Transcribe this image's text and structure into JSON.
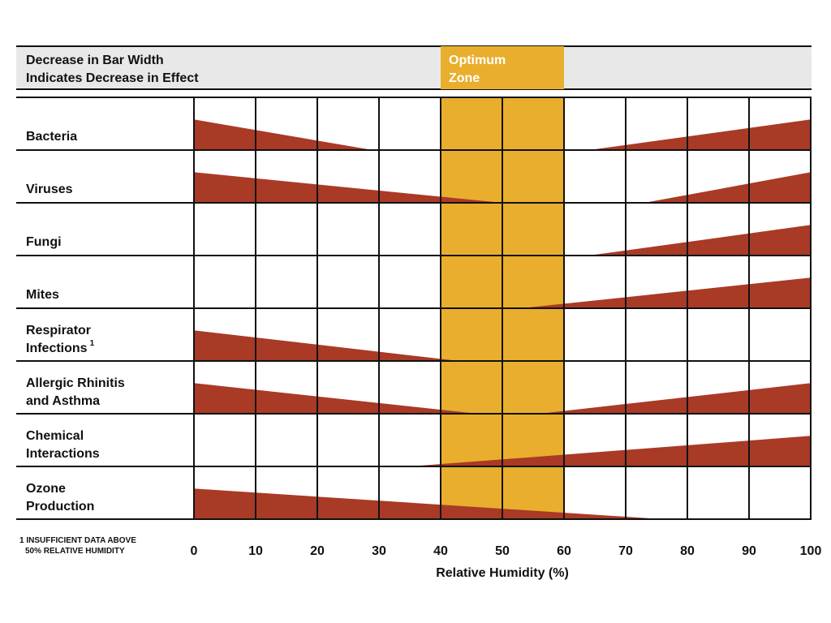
{
  "chart_data": {
    "type": "bar",
    "title": "",
    "legend_note": [
      "Decrease in Bar Width",
      "Indicates Decrease in Effect"
    ],
    "optimum_zone": {
      "label": [
        "Optimum",
        "Zone"
      ],
      "range": [
        40,
        60
      ]
    },
    "xlabel": "Relative Humidity (%)",
    "xlim": [
      0,
      100
    ],
    "xticks": [
      "0",
      "10",
      "20",
      "30",
      "40",
      "50",
      "60",
      "70",
      "80",
      "90",
      "100"
    ],
    "footnote": [
      "1 INSUFFICIENT DATA ABOVE",
      "50% RELATIVE HUMIDITY"
    ],
    "effect_scale": [
      0,
      1
    ],
    "series": [
      {
        "name": [
          "Bacteria"
        ],
        "segments": [
          {
            "from": 0,
            "to": 29,
            "effect_at_from": 1,
            "effect_at_to": 0
          },
          {
            "from": 64,
            "to": 100,
            "effect_at_from": 0,
            "effect_at_to": 1
          }
        ]
      },
      {
        "name": [
          "Viruses"
        ],
        "segments": [
          {
            "from": 0,
            "to": 50,
            "effect_at_from": 1,
            "effect_at_to": 0
          },
          {
            "from": 73,
            "to": 100,
            "effect_at_from": 0,
            "effect_at_to": 1
          }
        ]
      },
      {
        "name": [
          "Fungi"
        ],
        "segments": [
          {
            "from": 64,
            "to": 100,
            "effect_at_from": 0,
            "effect_at_to": 1
          }
        ]
      },
      {
        "name": [
          "Mites"
        ],
        "segments": [
          {
            "from": 53,
            "to": 100,
            "effect_at_from": 0,
            "effect_at_to": 1
          }
        ]
      },
      {
        "name": [
          "Respirator",
          "Infections"
        ],
        "superscript": "1",
        "segments": [
          {
            "from": 0,
            "to": 43,
            "effect_at_from": 1,
            "effect_at_to": 0
          }
        ]
      },
      {
        "name": [
          "Allergic Rhinitis",
          "and Asthma"
        ],
        "segments": [
          {
            "from": 0,
            "to": 46,
            "effect_at_from": 1,
            "effect_at_to": 0
          },
          {
            "from": 56,
            "to": 100,
            "effect_at_from": 0,
            "effect_at_to": 1
          }
        ]
      },
      {
        "name": [
          "Chemical",
          "Interactions"
        ],
        "segments": [
          {
            "from": 35,
            "to": 100,
            "effect_at_from": 0,
            "effect_at_to": 1
          }
        ]
      },
      {
        "name": [
          "Ozone",
          "Production"
        ],
        "segments": [
          {
            "from": 0,
            "to": 76,
            "effect_at_from": 1,
            "effect_at_to": 0
          }
        ]
      }
    ]
  },
  "colors": {
    "bar": "#a93a26",
    "optimum": "#e9ae2d",
    "header_bg": "#e8e8e8",
    "grid": "#111111"
  }
}
